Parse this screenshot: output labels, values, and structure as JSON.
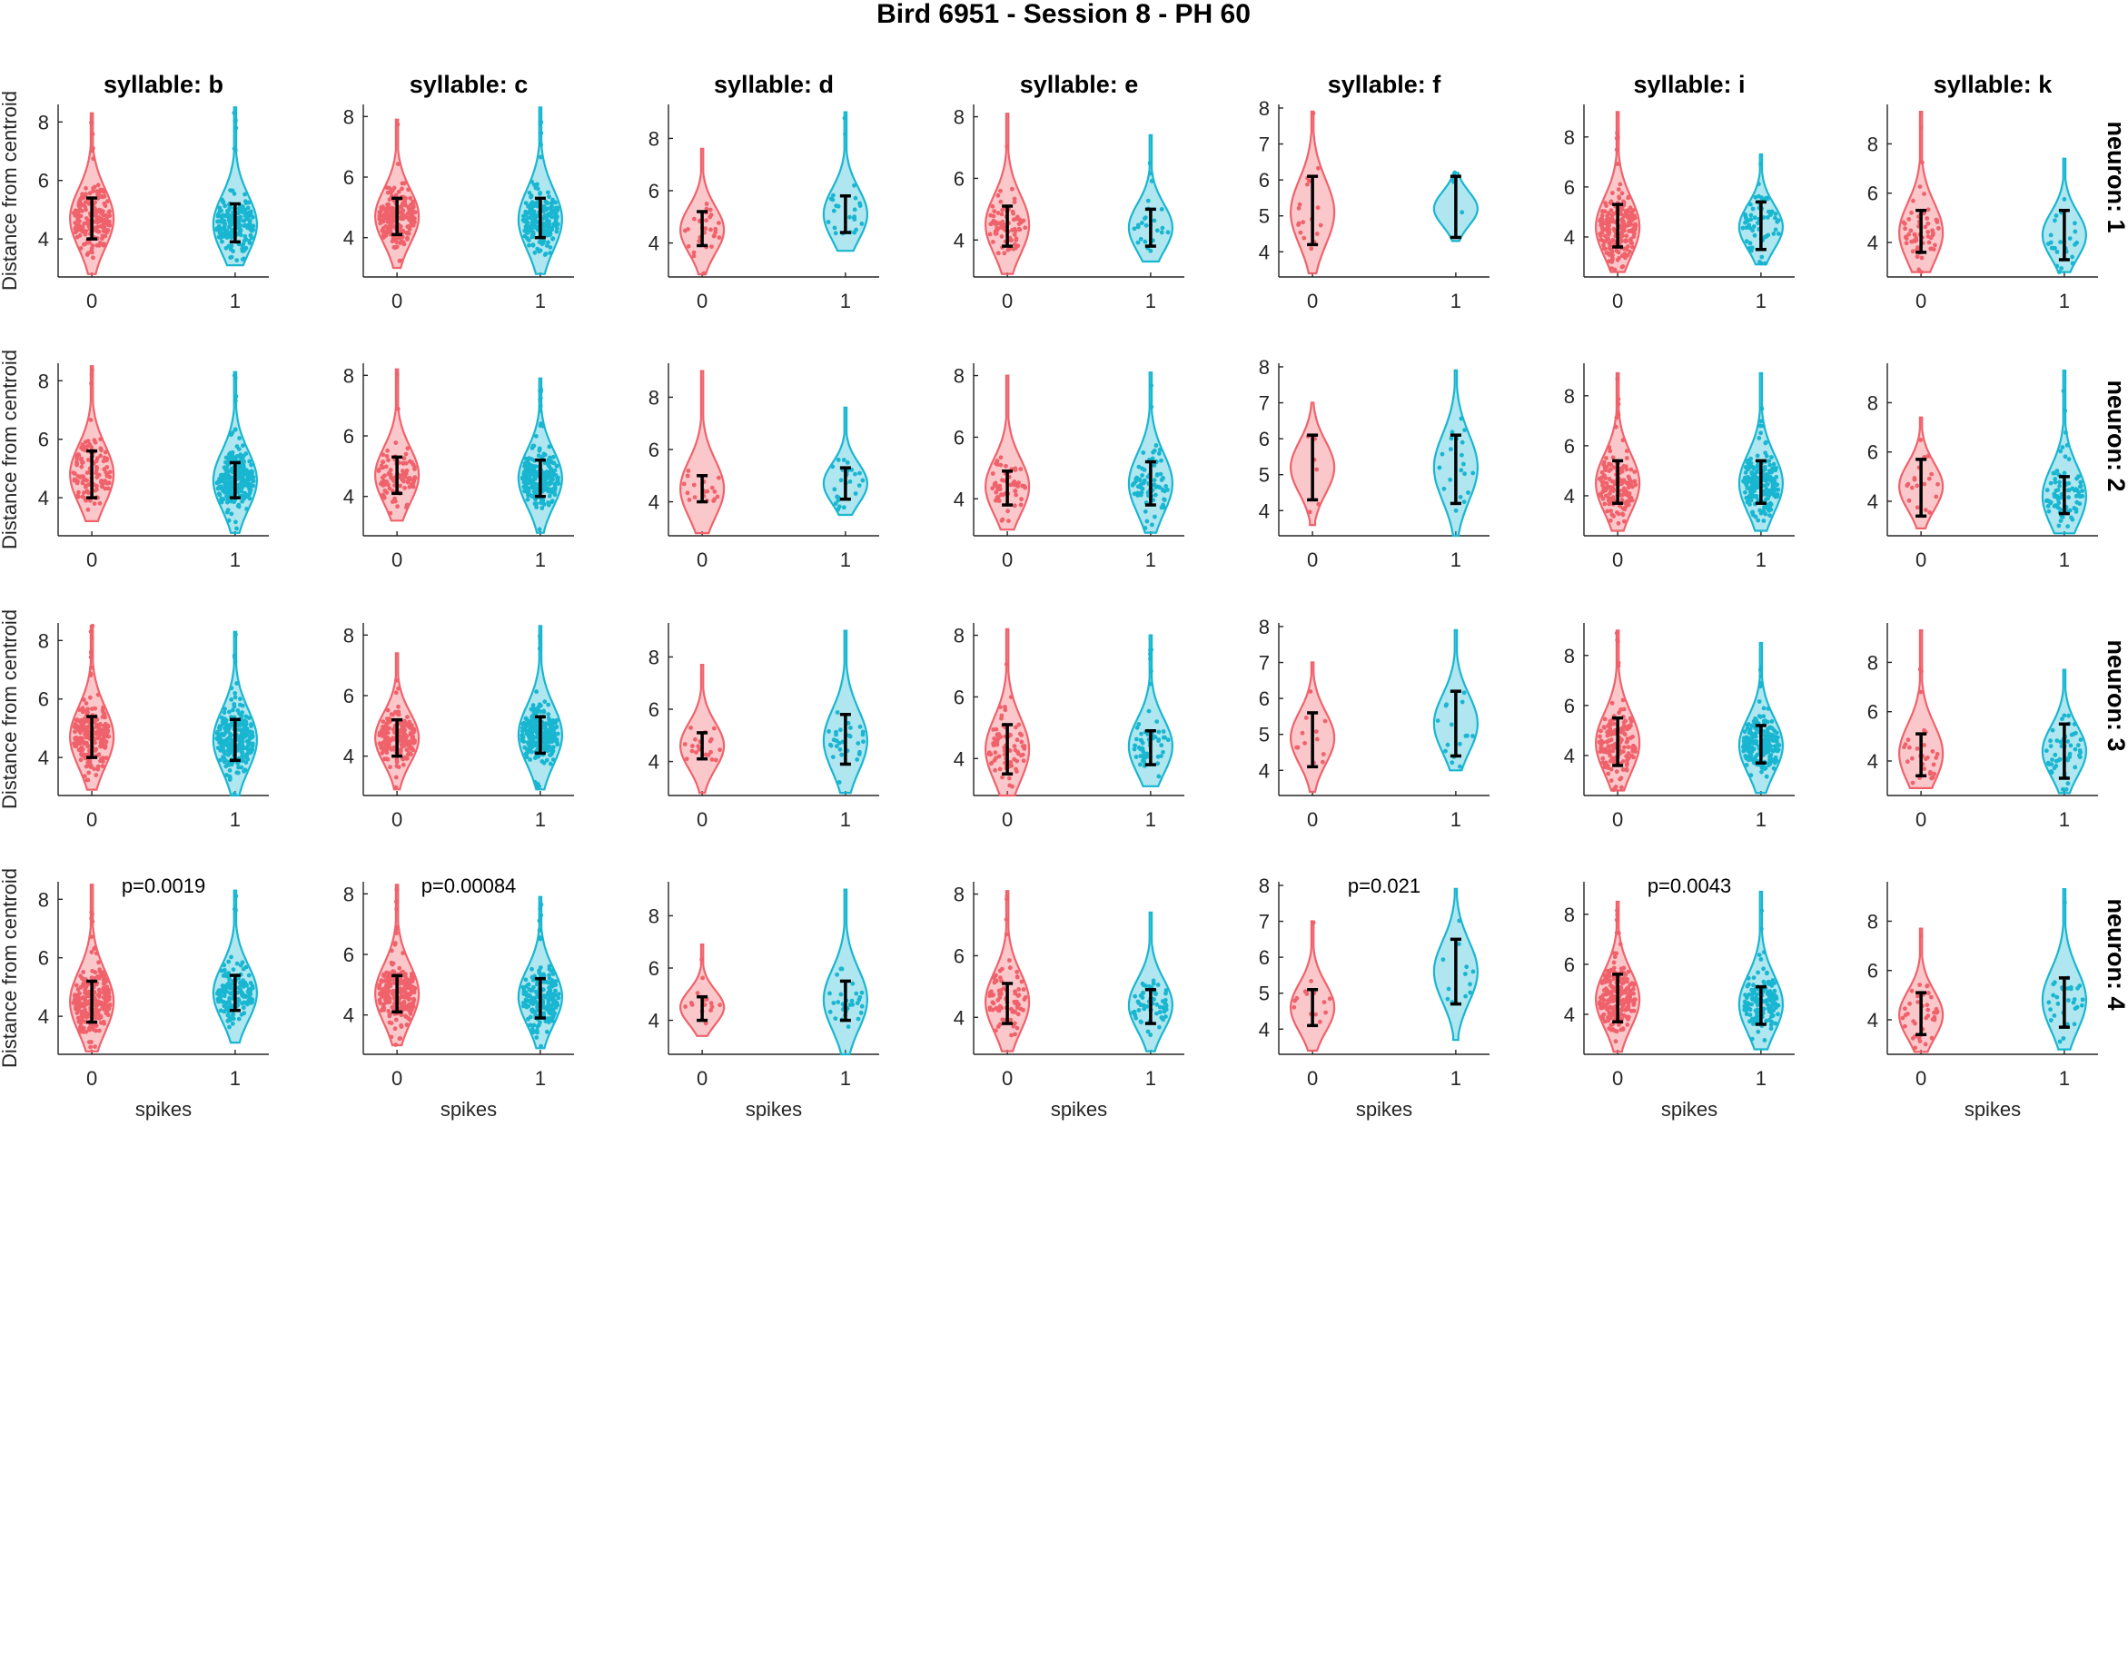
{
  "title": "Bird 6951 - Session 8 - PH 60",
  "colors": {
    "group0": "#F0626B",
    "group1": "#19B6D1",
    "errorbar": "#000000"
  },
  "chart_data": {
    "type": "violin",
    "layout": "grid of 4 rows (neurons) x 7 columns (syllables)",
    "columns": [
      "syllable: b",
      "syllable: c",
      "syllable: d",
      "syllable: e",
      "syllable: f",
      "syllable: i",
      "syllable: k"
    ],
    "rows": [
      "neuron: 1",
      "neuron: 2",
      "neuron: 3",
      "neuron: 4"
    ],
    "x_categories": [
      "0",
      "1"
    ],
    "x_label": "spikes",
    "y_label": "Distance from centroid",
    "column_ylim": [
      [
        2.7,
        8.6
      ],
      [
        2.7,
        8.4
      ],
      [
        2.7,
        9.3
      ],
      [
        2.8,
        8.4
      ],
      [
        3.3,
        8.1
      ],
      [
        2.4,
        9.3
      ],
      [
        2.6,
        9.6
      ]
    ],
    "column_yticks": [
      [
        4,
        6,
        8
      ],
      [
        4,
        6,
        8
      ],
      [
        4,
        6,
        8
      ],
      [
        4,
        6,
        8
      ],
      [
        4,
        5,
        6,
        7,
        8
      ],
      [
        4,
        6,
        8
      ],
      [
        4,
        6,
        8
      ]
    ],
    "pvalues": [
      [
        null,
        null,
        null,
        null,
        null,
        null,
        null
      ],
      [
        null,
        null,
        null,
        null,
        null,
        null,
        null
      ],
      [
        null,
        null,
        null,
        null,
        null,
        null,
        null
      ],
      [
        "p=0.0019",
        "p=0.00084",
        null,
        null,
        "p=0.021",
        "p=0.0043",
        null
      ]
    ],
    "panels": [
      [
        {
          "g0": {
            "range": [
              2.8,
              8.3
            ],
            "mean": 4.7,
            "err": [
              4.0,
              5.4
            ],
            "n": 200
          },
          "g1": {
            "range": [
              3.1,
              8.5
            ],
            "mean": 4.5,
            "err": [
              3.9,
              5.2
            ],
            "n": 200
          }
        },
        {
          "g0": {
            "range": [
              3.0,
              7.9
            ],
            "mean": 4.7,
            "err": [
              4.1,
              5.3
            ],
            "n": 200
          },
          "g1": {
            "range": [
              2.8,
              8.3
            ],
            "mean": 4.6,
            "err": [
              4.0,
              5.3
            ],
            "n": 200
          }
        },
        {
          "g0": {
            "range": [
              2.8,
              7.6
            ],
            "mean": 4.5,
            "err": [
              3.9,
              5.2
            ],
            "n": 30
          },
          "g1": {
            "range": [
              3.7,
              9.0
            ],
            "mean": 5.1,
            "err": [
              4.4,
              5.8
            ],
            "n": 25
          }
        },
        {
          "g0": {
            "range": [
              2.9,
              8.1
            ],
            "mean": 4.5,
            "err": [
              3.8,
              5.1
            ],
            "n": 80
          },
          "g1": {
            "range": [
              3.3,
              7.4
            ],
            "mean": 4.4,
            "err": [
              3.8,
              5.0
            ],
            "n": 25
          }
        },
        {
          "g0": {
            "range": [
              3.4,
              7.9
            ],
            "mean": 5.1,
            "err": [
              4.2,
              6.1
            ],
            "n": 18
          },
          "g1": {
            "range": [
              4.3,
              6.2
            ],
            "mean": 5.2,
            "err": [
              4.4,
              6.1
            ],
            "n": 5
          }
        },
        {
          "g0": {
            "range": [
              2.6,
              9.0
            ],
            "mean": 4.4,
            "err": [
              3.6,
              5.3
            ],
            "n": 200
          },
          "g1": {
            "range": [
              2.9,
              7.3
            ],
            "mean": 4.4,
            "err": [
              3.5,
              5.4
            ],
            "n": 60
          }
        },
        {
          "g0": {
            "range": [
              2.8,
              9.3
            ],
            "mean": 4.4,
            "err": [
              3.6,
              5.3
            ],
            "n": 60
          },
          "g1": {
            "range": [
              2.8,
              7.4
            ],
            "mean": 4.3,
            "err": [
              3.3,
              5.3
            ],
            "n": 25
          }
        }
      ],
      [
        {
          "g0": {
            "range": [
              3.2,
              8.5
            ],
            "mean": 4.8,
            "err": [
              4.0,
              5.6
            ],
            "n": 120
          },
          "g1": {
            "range": [
              2.8,
              8.3
            ],
            "mean": 4.6,
            "err": [
              4.0,
              5.2
            ],
            "n": 250
          }
        },
        {
          "g0": {
            "range": [
              3.2,
              8.2
            ],
            "mean": 4.7,
            "err": [
              4.1,
              5.3
            ],
            "n": 100
          },
          "g1": {
            "range": [
              2.8,
              7.9
            ],
            "mean": 4.6,
            "err": [
              4.0,
              5.2
            ],
            "n": 250
          }
        },
        {
          "g0": {
            "range": [
              2.8,
              9.0
            ],
            "mean": 4.5,
            "err": [
              4.0,
              5.0
            ],
            "n": 20
          },
          "g1": {
            "range": [
              3.5,
              7.6
            ],
            "mean": 4.7,
            "err": [
              4.1,
              5.3
            ],
            "n": 25
          }
        },
        {
          "g0": {
            "range": [
              3.0,
              8.0
            ],
            "mean": 4.4,
            "err": [
              3.8,
              4.9
            ],
            "n": 60
          },
          "g1": {
            "range": [
              2.9,
              8.1
            ],
            "mean": 4.5,
            "err": [
              3.8,
              5.2
            ],
            "n": 80
          }
        },
        {
          "g0": {
            "range": [
              3.6,
              7.0
            ],
            "mean": 5.2,
            "err": [
              4.3,
              6.1
            ],
            "n": 6
          },
          "g1": {
            "range": [
              3.3,
              7.9
            ],
            "mean": 5.2,
            "err": [
              4.2,
              6.1
            ],
            "n": 20
          }
        },
        {
          "g0": {
            "range": [
              2.6,
              8.9
            ],
            "mean": 4.5,
            "err": [
              3.7,
              5.4
            ],
            "n": 150
          },
          "g1": {
            "range": [
              2.6,
              8.9
            ],
            "mean": 4.5,
            "err": [
              3.7,
              5.4
            ],
            "n": 200
          }
        },
        {
          "g0": {
            "range": [
              2.9,
              7.4
            ],
            "mean": 4.6,
            "err": [
              3.4,
              5.7
            ],
            "n": 20
          },
          "g1": {
            "range": [
              2.7,
              9.3
            ],
            "mean": 4.2,
            "err": [
              3.5,
              5.0
            ],
            "n": 80
          }
        }
      ],
      [
        {
          "g0": {
            "range": [
              2.9,
              8.5
            ],
            "mean": 4.7,
            "err": [
              4.0,
              5.4
            ],
            "n": 220
          },
          "g1": {
            "range": [
              2.7,
              8.3
            ],
            "mean": 4.6,
            "err": [
              3.9,
              5.3
            ],
            "n": 250
          }
        },
        {
          "g0": {
            "range": [
              2.9,
              7.4
            ],
            "mean": 4.6,
            "err": [
              4.0,
              5.2
            ],
            "n": 180
          },
          "g1": {
            "range": [
              2.9,
              8.3
            ],
            "mean": 4.7,
            "err": [
              4.1,
              5.3
            ],
            "n": 250
          }
        },
        {
          "g0": {
            "range": [
              2.8,
              7.7
            ],
            "mean": 4.6,
            "err": [
              4.1,
              5.1
            ],
            "n": 20
          },
          "g1": {
            "range": [
              2.8,
              9.0
            ],
            "mean": 4.8,
            "err": [
              3.9,
              5.8
            ],
            "n": 30
          }
        },
        {
          "g0": {
            "range": [
              2.8,
              8.2
            ],
            "mean": 4.3,
            "err": [
              3.5,
              5.1
            ],
            "n": 80
          },
          "g1": {
            "range": [
              3.1,
              8.0
            ],
            "mean": 4.4,
            "err": [
              3.8,
              4.9
            ],
            "n": 60
          }
        },
        {
          "g0": {
            "range": [
              3.4,
              7.0
            ],
            "mean": 4.9,
            "err": [
              4.1,
              5.6
            ],
            "n": 12
          },
          "g1": {
            "range": [
              4.0,
              7.9
            ],
            "mean": 5.3,
            "err": [
              4.4,
              6.2
            ],
            "n": 15
          }
        },
        {
          "g0": {
            "range": [
              2.6,
              9.0
            ],
            "mean": 4.5,
            "err": [
              3.6,
              5.5
            ],
            "n": 150
          },
          "g1": {
            "range": [
              2.5,
              8.5
            ],
            "mean": 4.4,
            "err": [
              3.7,
              5.2
            ],
            "n": 200
          }
        },
        {
          "g0": {
            "range": [
              2.9,
              9.3
            ],
            "mean": 4.3,
            "err": [
              3.4,
              5.1
            ],
            "n": 30
          },
          "g1": {
            "range": [
              2.7,
              7.7
            ],
            "mean": 4.4,
            "err": [
              3.3,
              5.5
            ],
            "n": 50
          }
        }
      ],
      [
        {
          "g0": {
            "range": [
              2.8,
              8.5
            ],
            "mean": 4.5,
            "err": [
              3.8,
              5.2
            ],
            "n": 250
          },
          "g1": {
            "range": [
              3.1,
              8.3
            ],
            "mean": 4.8,
            "err": [
              4.2,
              5.4
            ],
            "n": 150
          }
        },
        {
          "g0": {
            "range": [
              3.0,
              8.3
            ],
            "mean": 4.7,
            "err": [
              4.1,
              5.3
            ],
            "n": 250
          },
          "g1": {
            "range": [
              2.9,
              7.9
            ],
            "mean": 4.6,
            "err": [
              3.9,
              5.2
            ],
            "n": 200
          }
        },
        {
          "g0": {
            "range": [
              3.4,
              6.9
            ],
            "mean": 4.5,
            "err": [
              4.0,
              4.9
            ],
            "n": 15
          },
          "g1": {
            "range": [
              2.7,
              9.0
            ],
            "mean": 4.8,
            "err": [
              4.0,
              5.5
            ],
            "n": 30
          }
        },
        {
          "g0": {
            "range": [
              2.9,
              8.1
            ],
            "mean": 4.5,
            "err": [
              3.8,
              5.1
            ],
            "n": 80
          },
          "g1": {
            "range": [
              2.9,
              7.4
            ],
            "mean": 4.4,
            "err": [
              3.8,
              4.9
            ],
            "n": 60
          }
        },
        {
          "g0": {
            "range": [
              3.4,
              7.0
            ],
            "mean": 4.6,
            "err": [
              4.1,
              5.1
            ],
            "n": 15
          },
          "g1": {
            "range": [
              3.7,
              7.9
            ],
            "mean": 5.6,
            "err": [
              4.7,
              6.5
            ],
            "n": 12
          }
        },
        {
          "g0": {
            "range": [
              2.5,
              8.5
            ],
            "mean": 4.6,
            "err": [
              3.7,
              5.6
            ],
            "n": 220
          },
          "g1": {
            "range": [
              2.6,
              8.9
            ],
            "mean": 4.4,
            "err": [
              3.6,
              5.1
            ],
            "n": 150
          }
        },
        {
          "g0": {
            "range": [
              2.7,
              7.7
            ],
            "mean": 4.2,
            "err": [
              3.4,
              5.1
            ],
            "n": 40
          },
          "g1": {
            "range": [
              2.8,
              9.3
            ],
            "mean": 4.8,
            "err": [
              3.7,
              5.7
            ],
            "n": 30
          }
        }
      ]
    ]
  }
}
